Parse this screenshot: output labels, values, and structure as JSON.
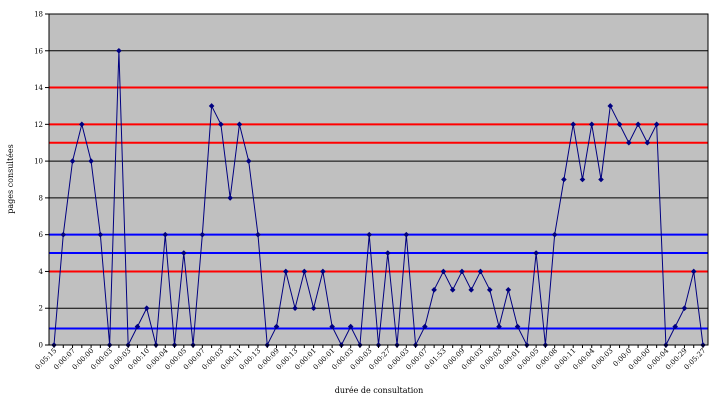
{
  "chart_data": {
    "type": "line",
    "title": "",
    "xlabel": "durée de consultation",
    "ylabel": "pages consultées",
    "ylim": [
      0,
      18
    ],
    "y_ticks": [
      0,
      2,
      4,
      6,
      8,
      10,
      12,
      14,
      16,
      18
    ],
    "grid": true,
    "background": "#c0c0c0",
    "series": [
      {
        "color": "#000080",
        "values": [
          0,
          6,
          10,
          12,
          10,
          6,
          0,
          16,
          0,
          1,
          2,
          0,
          6,
          0,
          5,
          0,
          6,
          13,
          12,
          8,
          12,
          10,
          6,
          0,
          1,
          4,
          2,
          4,
          2,
          4,
          1,
          0,
          1,
          0,
          6,
          0,
          5,
          0,
          6,
          0,
          1,
          3,
          4,
          3,
          4,
          3,
          4,
          3,
          1,
          3,
          1,
          0,
          5,
          0,
          6,
          9,
          12,
          9,
          12,
          9,
          13,
          12,
          11,
          12,
          11,
          12,
          0,
          1,
          2,
          4,
          0
        ]
      }
    ],
    "x_tick_labels": [
      "0:05:15",
      "0:00:07",
      "0:00:00",
      "0:00:03",
      "0:00:03",
      "0:00:10",
      "0:00:04",
      "0:00:05",
      "0:00:07",
      "0:00:03",
      "0:00:11",
      "0:00:13",
      "0:00:09",
      "0:00:13",
      "0:00:01",
      "0:00:01",
      "0:00:03",
      "0:00:03",
      "0:00:27",
      "0:00:03",
      "0:00:07",
      "0:01:53",
      "0:00:09",
      "0:00:03",
      "0:00:03",
      "0:00:01",
      "0:00:05",
      "0:00:08",
      "0:00:11",
      "0:00:04",
      "0:00:03",
      "0:00:0",
      "0:00:00",
      "0:00:04",
      "0:00:29",
      "0:05:27"
    ],
    "reference_lines": [
      {
        "value": 14,
        "color": "#ff0000"
      },
      {
        "value": 12,
        "color": "#ff0000"
      },
      {
        "value": 11,
        "color": "#ff0000"
      },
      {
        "value": 6,
        "color": "#0000ff"
      },
      {
        "value": 5,
        "color": "#0000ff"
      },
      {
        "value": 4,
        "color": "#ff0000"
      },
      {
        "value": 0.9,
        "color": "#0000ff"
      }
    ]
  }
}
